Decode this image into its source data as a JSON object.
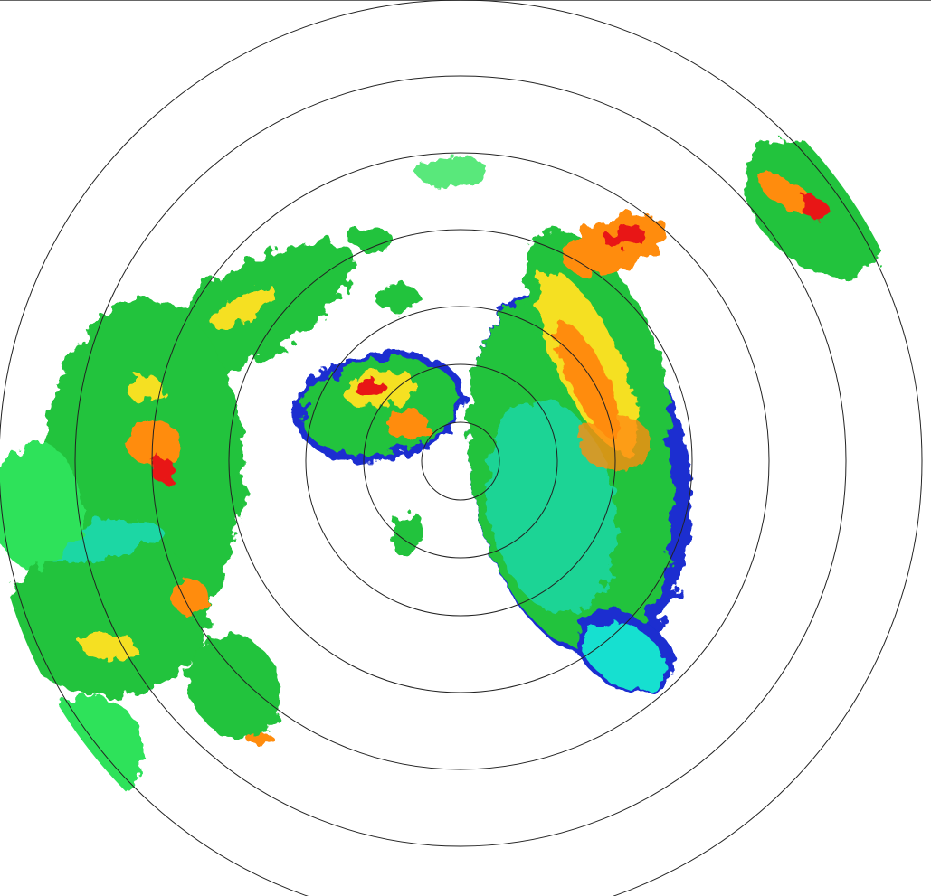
{
  "radar": {
    "colors": {
      "weak": "#1a2fd0",
      "light": "#19e0d0",
      "moderate": "#22c33c",
      "bright": "#2fe25a",
      "heavy": "#f5e020",
      "strong": "#ff8c10",
      "intense": "#e81818",
      "ring": "#222222"
    }
  }
}
